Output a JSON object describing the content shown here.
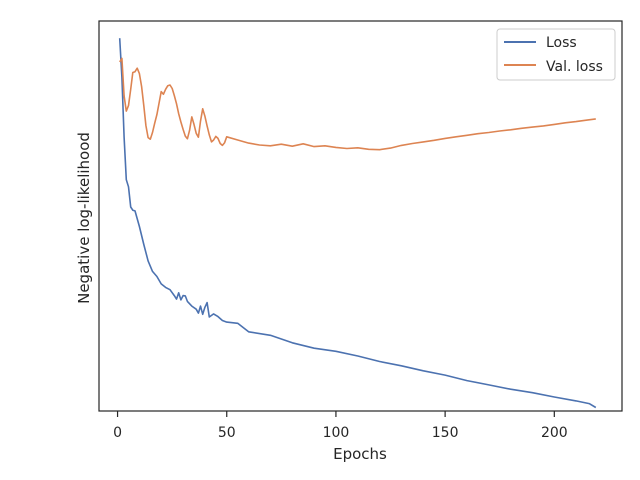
{
  "chart_data": {
    "type": "line",
    "title": "",
    "xlabel": "Epochs",
    "ylabel": "Negative log-likelihood",
    "xlim": [
      -8.5,
      231
    ],
    "ylim": [
      0,
      100
    ],
    "x_ticks": [
      0,
      50,
      100,
      150,
      200
    ],
    "y_ticks_shown": false,
    "grid": false,
    "legend_position": "top-right",
    "series": [
      {
        "name": "Loss",
        "color": "#4c72b0",
        "x": [
          1,
          2,
          3,
          4,
          5,
          6,
          7,
          8,
          10,
          12,
          14,
          16,
          18,
          20,
          22,
          24,
          26,
          27,
          28,
          29,
          30,
          31,
          32,
          34,
          36,
          37,
          38,
          39,
          40,
          41,
          42,
          44,
          46,
          48,
          50,
          55,
          60,
          70,
          80,
          90,
          100,
          110,
          120,
          130,
          140,
          150,
          160,
          170,
          180,
          190,
          200,
          210,
          216,
          219
        ],
        "y": [
          95.6,
          85.6,
          70.2,
          59.3,
          57.5,
          52.3,
          51.5,
          51.3,
          47.3,
          42.7,
          38.5,
          35.8,
          34.5,
          32.6,
          31.7,
          31.1,
          29.6,
          28.7,
          30.3,
          28.5,
          29.6,
          29.5,
          28.1,
          26.9,
          26.1,
          25.1,
          26.9,
          24.8,
          26.6,
          27.8,
          24.1,
          24.9,
          24.2,
          23.2,
          22.8,
          22.5,
          20.3,
          19.4,
          17.5,
          16.1,
          15.3,
          14.1,
          12.7,
          11.6,
          10.3,
          9.2,
          7.8,
          6.7,
          5.6,
          4.7,
          3.6,
          2.6,
          1.9,
          0.9
        ]
      },
      {
        "name": "Val. loss",
        "color": "#dd8452",
        "x": [
          1,
          2,
          3,
          4,
          5,
          6,
          7,
          8,
          9,
          10,
          11,
          12,
          13,
          14,
          15,
          16,
          17,
          18,
          19,
          20,
          21,
          22,
          23,
          24,
          25,
          26,
          27,
          28,
          29,
          30,
          31,
          32,
          33,
          34,
          35,
          36,
          37,
          38,
          39,
          40,
          41,
          42,
          43,
          44,
          45,
          46,
          47,
          48,
          49,
          50,
          55,
          60,
          65,
          70,
          75,
          80,
          85,
          90,
          95,
          100,
          105,
          110,
          115,
          120,
          125,
          130,
          135,
          140,
          145,
          150,
          155,
          160,
          165,
          170,
          175,
          180,
          185,
          190,
          195,
          200,
          205,
          210,
          215,
          219
        ],
        "y": [
          89.5,
          90.4,
          80.8,
          76.9,
          78.3,
          82.5,
          86.8,
          87.0,
          87.9,
          86.5,
          83.2,
          78.3,
          73.2,
          70.1,
          69.7,
          71.4,
          73.8,
          76.0,
          79.0,
          81.9,
          81.2,
          82.5,
          83.4,
          83.6,
          82.7,
          80.9,
          78.8,
          76.2,
          74.1,
          72.2,
          70.5,
          69.8,
          72.0,
          75.4,
          73.5,
          71.2,
          70.2,
          74.3,
          77.5,
          75.6,
          73.1,
          70.8,
          69.0,
          69.5,
          70.4,
          69.9,
          68.6,
          68.1,
          68.8,
          70.3,
          69.5,
          68.7,
          68.2,
          68.0,
          68.4,
          67.9,
          68.5,
          67.8,
          68.0,
          67.6,
          67.3,
          67.5,
          67.1,
          67.0,
          67.4,
          68.1,
          68.6,
          69.0,
          69.4,
          69.9,
          70.3,
          70.7,
          71.1,
          71.4,
          71.8,
          72.1,
          72.5,
          72.8,
          73.1,
          73.5,
          73.9,
          74.2,
          74.6,
          74.9
        ]
      }
    ]
  }
}
